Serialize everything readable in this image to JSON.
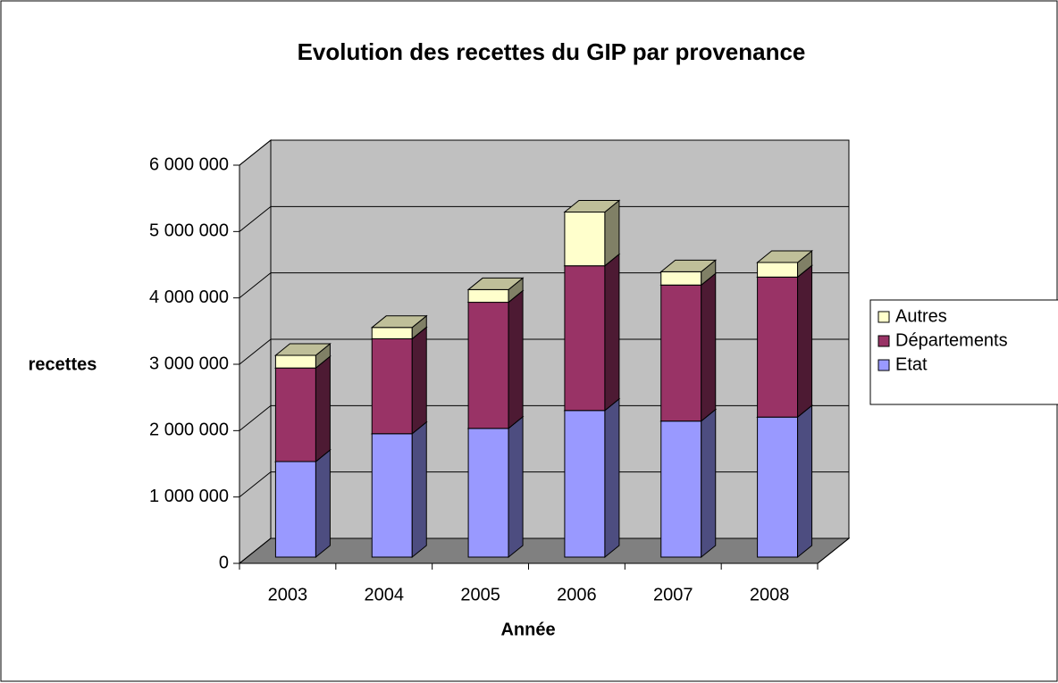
{
  "chart_data": {
    "type": "bar3d",
    "title": "Evolution des recettes du GIP par provenance",
    "x_label": "Année",
    "y_label": "recettes",
    "categories": [
      "2003",
      "2004",
      "2005",
      "2006",
      "2007",
      "2008"
    ],
    "series": [
      {
        "name": "Etat",
        "color": "#9999ff",
        "values": [
          1440000,
          1860000,
          1940000,
          2210000,
          2050000,
          2110000
        ]
      },
      {
        "name": "Départements",
        "color": "#993366",
        "values": [
          1410000,
          1430000,
          1900000,
          2180000,
          2050000,
          2110000
        ]
      },
      {
        "name": "Autres",
        "color": "#ffffcc",
        "values": [
          190000,
          170000,
          190000,
          810000,
          200000,
          220000
        ]
      }
    ],
    "stacked": true,
    "ylim": [
      0,
      6000000
    ],
    "yticks": [
      0,
      {
        "value": 1000000,
        "label": "1 000 000"
      },
      {
        "value": 2000000,
        "label": "2 000 000"
      },
      {
        "value": 3000000,
        "label": "3 000 000"
      },
      {
        "value": 4000000,
        "label": "4 000 000"
      },
      {
        "value": 5000000,
        "label": "5 000 000"
      },
      {
        "value": 6000000,
        "label": "6 000 000"
      }
    ],
    "grid": true,
    "legend": "right"
  }
}
